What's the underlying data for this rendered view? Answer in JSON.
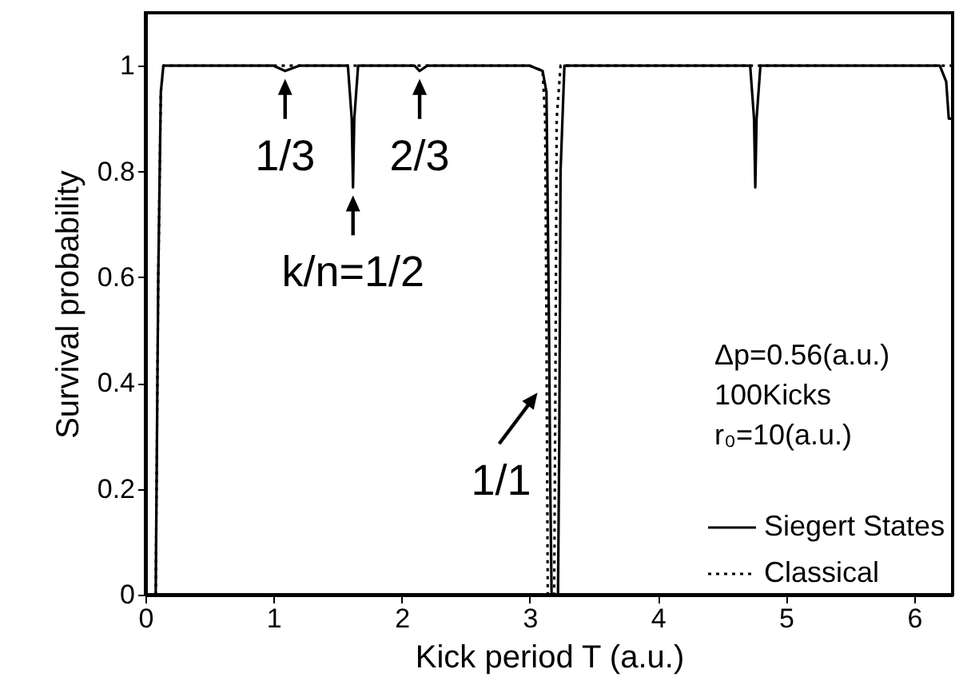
{
  "chart_data": {
    "type": "line",
    "xlabel": "Kick period T  (a.u.)",
    "ylabel": "Survival probability",
    "xlim": [
      0,
      6.3
    ],
    "ylim": [
      0,
      1.1
    ],
    "xticks": [
      0,
      1,
      2,
      3,
      4,
      5,
      6
    ],
    "yticks": [
      0,
      0.2,
      0.4,
      0.6,
      0.8,
      1
    ],
    "grid": false,
    "legend": "bottom right",
    "marker": "none",
    "series": [
      {
        "name": "Siegert States",
        "color": "#000000",
        "line_style": "solid",
        "x": [
          0.08,
          0.09,
          0.1,
          0.12,
          0.14,
          0.5,
          1.0,
          1.09,
          1.2,
          1.58,
          1.61,
          1.62,
          1.63,
          1.66,
          2.1,
          2.14,
          2.2,
          3.0,
          3.1,
          3.13,
          3.15,
          3.16,
          3.17,
          3.22,
          3.23,
          3.24,
          3.27,
          4.0,
          4.72,
          4.75,
          4.76,
          4.77,
          4.8,
          5.5,
          6.2,
          6.25,
          6.27,
          6.3
        ],
        "values": [
          0,
          0.3,
          0.6,
          0.95,
          1,
          1,
          1,
          0.99,
          1,
          1,
          0.9,
          0.77,
          0.9,
          1,
          1,
          0.99,
          1,
          1,
          0.99,
          0.95,
          0.5,
          0.2,
          0,
          0,
          0.3,
          0.8,
          1,
          1,
          1,
          0.9,
          0.77,
          0.9,
          1,
          1,
          1,
          0.97,
          0.9,
          0.9
        ]
      },
      {
        "name": "Classical",
        "color": "#000000",
        "line_style": "dotted",
        "x": [
          0.08,
          0.09,
          0.1,
          0.12,
          0.14,
          1.0,
          2.0,
          3.0,
          3.1,
          3.12,
          3.13,
          3.14,
          3.19,
          3.2,
          3.21,
          3.24,
          4.0,
          5.0,
          6.0,
          6.3
        ],
        "values": [
          0,
          0.3,
          0.6,
          0.95,
          1,
          1,
          1,
          1,
          0.99,
          0.9,
          0.5,
          0,
          0,
          0.4,
          0.9,
          1,
          1,
          1,
          1,
          1
        ]
      }
    ],
    "annotations": [
      {
        "text": "1/3",
        "x": 1.09,
        "y": 0.99
      },
      {
        "text": "2/3",
        "x": 2.14,
        "y": 0.99
      },
      {
        "text": "k/n=1/2",
        "x": 1.62,
        "y": 0.77
      },
      {
        "text": "1/1",
        "x": 3.11,
        "y": 0.4
      },
      "Δp=0.56(a.u.)",
      "100Kicks",
      "r₀=10(a.u.)"
    ]
  }
}
